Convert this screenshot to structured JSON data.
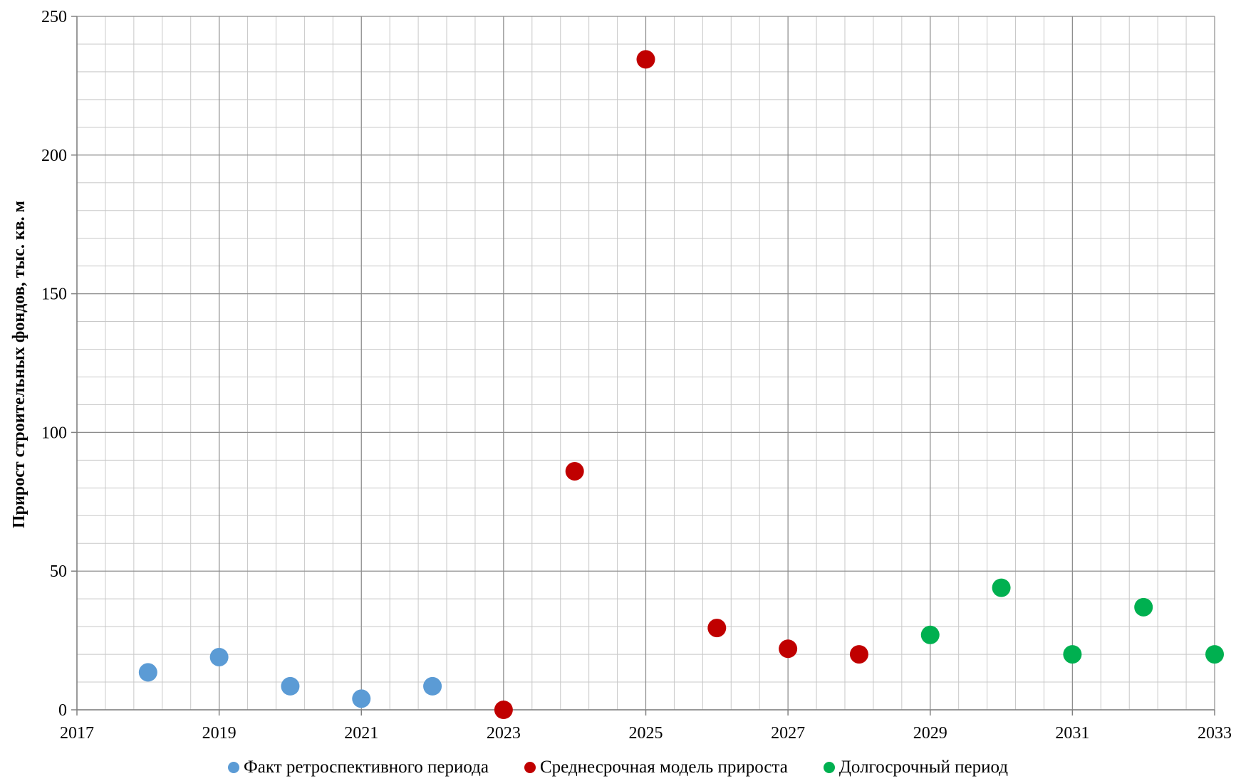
{
  "chart_data": {
    "type": "scatter",
    "title": "",
    "xlabel": "",
    "ylabel": "Прирост строительных фондов, тыс. кв. м",
    "xlim": [
      2017,
      2033
    ],
    "ylim": [
      0,
      250
    ],
    "x_ticks": [
      "2017",
      "2019",
      "2021",
      "2023",
      "2025",
      "2027",
      "2029",
      "2031",
      "2033"
    ],
    "y_ticks": [
      "0",
      "50",
      "100",
      "150",
      "200",
      "250"
    ],
    "grid": true,
    "legend_position": "bottom",
    "series": [
      {
        "name": "Факт ретроспективного периода",
        "color": "#5B9BD5",
        "x": [
          2018,
          2019,
          2020,
          2021,
          2022
        ],
        "y": [
          13.5,
          19,
          8.5,
          4,
          8.5
        ]
      },
      {
        "name": "Среднесрочная модель прироста",
        "color": "#C00000",
        "x": [
          2023,
          2024,
          2025,
          2026,
          2027,
          2028
        ],
        "y": [
          0,
          86,
          234.5,
          29.5,
          22,
          20
        ]
      },
      {
        "name": "Долгосрочный период",
        "color": "#00B050",
        "x": [
          2029,
          2030,
          2031,
          2032,
          2033
        ],
        "y": [
          27,
          44,
          20,
          37,
          20
        ]
      }
    ]
  }
}
